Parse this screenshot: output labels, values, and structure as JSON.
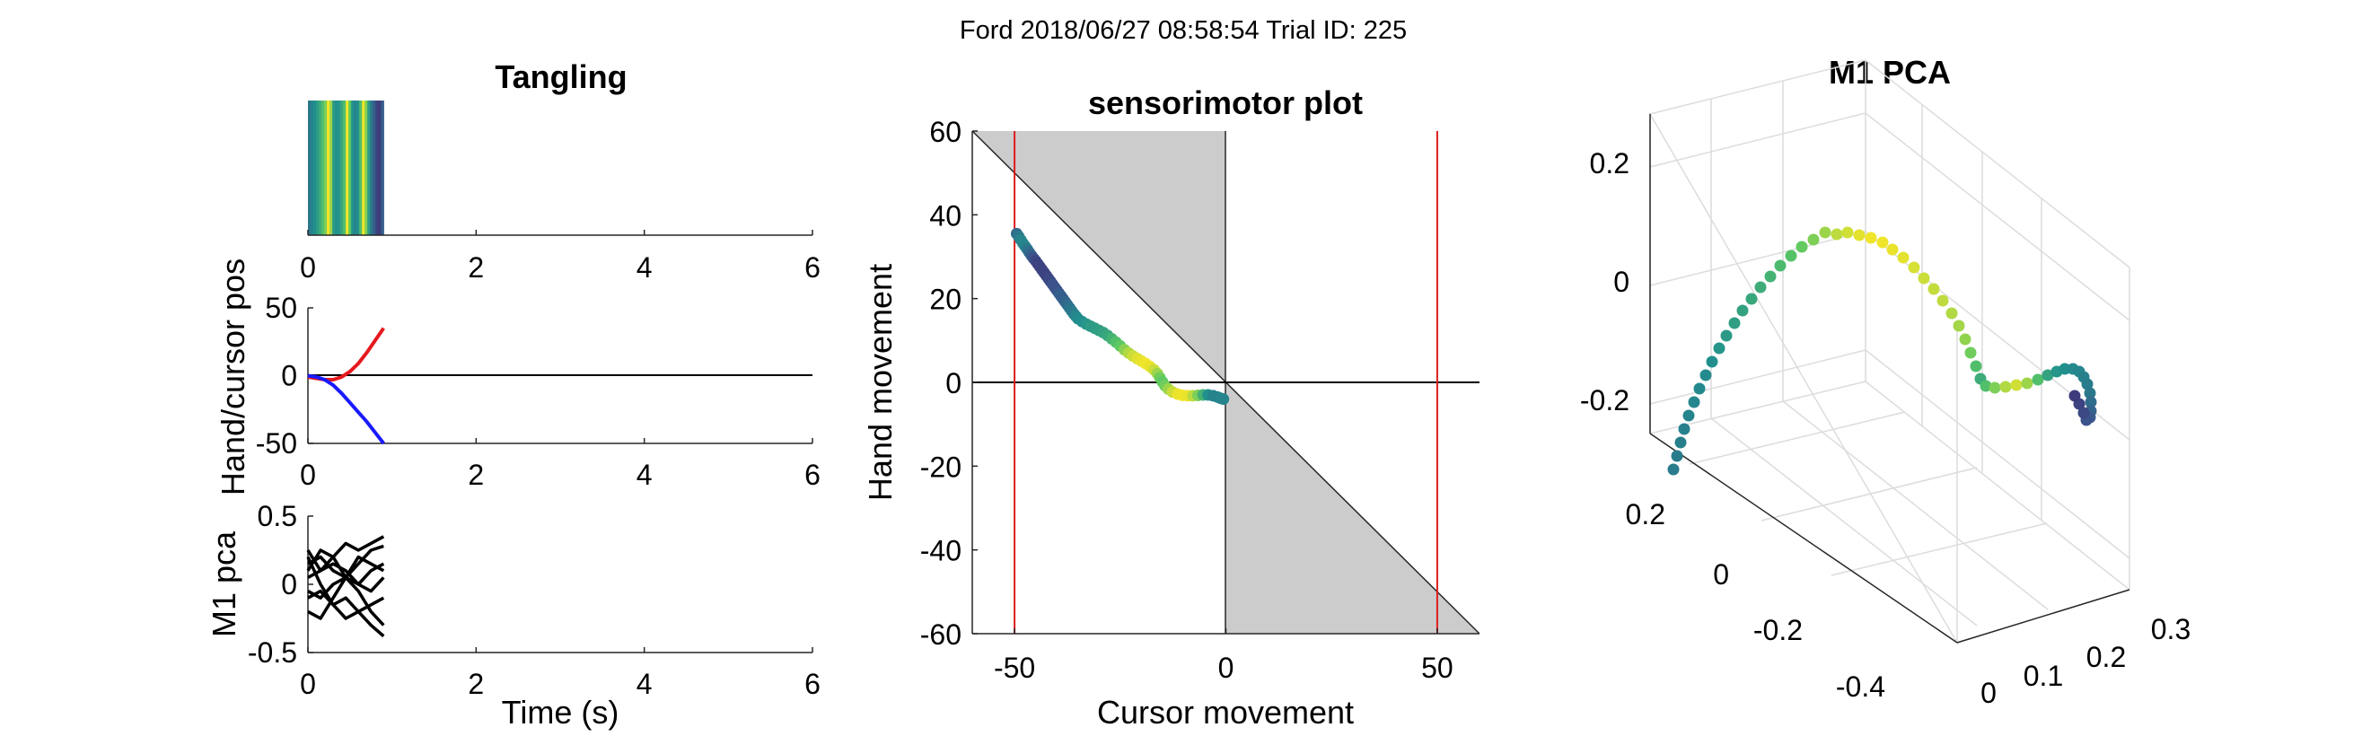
{
  "suptitle": "Ford 2018/06/27 08:58:54 Trial ID: 225",
  "colors": {
    "axis": "#262626",
    "hand_trace": "#e6191e",
    "cursor_trace": "#1a1aff",
    "pca_traces": "#000000",
    "gray_region": "#cccccc",
    "boundary_lines": "#dd1c1c",
    "colormap": [
      "#440154",
      "#3b528b",
      "#21908d",
      "#5dc963",
      "#fde725"
    ]
  },
  "chart_data": [
    {
      "panel": "tangling",
      "type": "heatmap",
      "title": "Tangling",
      "xlim": [
        0,
        6
      ],
      "xticks": [
        "0",
        "2",
        "4",
        "6"
      ],
      "extent_x": [
        0,
        0.9
      ],
      "column_values": [
        0.4,
        0.45,
        0.5,
        0.55,
        0.62,
        0.7,
        0.8,
        0.98,
        0.85,
        0.55,
        0.5,
        0.52,
        0.6,
        0.7,
        0.98,
        0.75,
        0.5,
        0.45,
        0.5,
        0.7,
        0.98,
        0.8,
        0.55,
        0.4,
        0.3,
        0.2,
        0.18,
        0.3
      ]
    },
    {
      "panel": "hand_cursor",
      "type": "line",
      "ylabel": "Hand/cursor pos",
      "xlim": [
        0,
        6
      ],
      "ylim": [
        -50,
        50
      ],
      "xticks": [
        "0",
        "2",
        "4",
        "6"
      ],
      "yticks": [
        "-50",
        "0",
        "50"
      ],
      "series": [
        {
          "x": [
            0,
            0.1,
            0.2,
            0.3,
            0.4,
            0.5,
            0.6,
            0.7,
            0.8,
            0.9
          ],
          "y": [
            -1,
            -2,
            -3,
            -3,
            -1,
            3,
            9,
            17,
            26,
            35
          ]
        },
        {
          "x": [
            0,
            0.1,
            0.2,
            0.3,
            0.4,
            0.5,
            0.6,
            0.7,
            0.8,
            0.9
          ],
          "y": [
            0,
            -1,
            -3,
            -7,
            -13,
            -20,
            -27,
            -34,
            -42,
            -50
          ]
        }
      ]
    },
    {
      "panel": "m1_pca_time",
      "type": "line",
      "ylabel": "M1 pca",
      "xlabel": "Time (s)",
      "xlim": [
        0,
        6
      ],
      "ylim": [
        -0.5,
        0.5
      ],
      "xticks": [
        "0",
        "2",
        "4",
        "6"
      ],
      "yticks": [
        "-0.5",
        "0",
        "0.5"
      ],
      "series": [
        {
          "x": [
            0,
            0.15,
            0.3,
            0.45,
            0.6,
            0.75,
            0.9
          ],
          "y": [
            0.25,
            0.1,
            0.2,
            0.3,
            0.25,
            0.3,
            0.35
          ]
        },
        {
          "x": [
            0,
            0.15,
            0.3,
            0.45,
            0.6,
            0.75,
            0.9
          ],
          "y": [
            0.15,
            0.2,
            0.1,
            0.05,
            0.15,
            0.25,
            0.28
          ]
        },
        {
          "x": [
            0,
            0.15,
            0.3,
            0.45,
            0.6,
            0.75,
            0.9
          ],
          "y": [
            0.05,
            0.1,
            0.15,
            0.1,
            0.0,
            -0.05,
            0.05
          ]
        },
        {
          "x": [
            0,
            0.15,
            0.3,
            0.45,
            0.6,
            0.75,
            0.9
          ],
          "y": [
            -0.05,
            -0.1,
            0.0,
            0.05,
            0.0,
            0.1,
            0.15
          ]
        },
        {
          "x": [
            0,
            0.15,
            0.3,
            0.45,
            0.6,
            0.75,
            0.9
          ],
          "y": [
            -0.1,
            -0.05,
            -0.15,
            -0.1,
            -0.2,
            -0.15,
            -0.1
          ]
        },
        {
          "x": [
            0,
            0.15,
            0.3,
            0.45,
            0.6,
            0.75,
            0.9
          ],
          "y": [
            0.2,
            0.0,
            -0.15,
            -0.25,
            -0.2,
            -0.3,
            -0.38
          ]
        },
        {
          "x": [
            0,
            0.15,
            0.3,
            0.45,
            0.6,
            0.75,
            0.9
          ],
          "y": [
            -0.2,
            -0.25,
            -0.1,
            0.05,
            0.2,
            0.15,
            0.1
          ]
        },
        {
          "x": [
            0,
            0.15,
            0.3,
            0.45,
            0.6,
            0.75,
            0.9
          ],
          "y": [
            0.1,
            0.25,
            0.2,
            0.05,
            -0.05,
            -0.2,
            -0.3
          ]
        }
      ]
    },
    {
      "panel": "sensorimotor",
      "type": "scatter",
      "title": "sensorimotor plot",
      "xlabel": "Cursor movement",
      "ylabel": "Hand movement",
      "xlim": [
        -60,
        60
      ],
      "ylim": [
        -60,
        60
      ],
      "xticks": [
        "-50",
        "0",
        "50"
      ],
      "yticks": [
        "60",
        "40",
        "20",
        "0",
        "-20",
        "-40",
        "-60"
      ],
      "boundaries_x": [
        -50,
        50
      ],
      "points": [
        {
          "x": -49.5,
          "y": 35.5,
          "c": 0.35
        },
        {
          "x": -49,
          "y": 34.8,
          "c": 0.4
        },
        {
          "x": -48.5,
          "y": 34,
          "c": 0.45
        },
        {
          "x": -48,
          "y": 33.2,
          "c": 0.45
        },
        {
          "x": -47.5,
          "y": 32.5,
          "c": 0.45
        },
        {
          "x": -47,
          "y": 31.8,
          "c": 0.4
        },
        {
          "x": -46.5,
          "y": 31,
          "c": 0.35
        },
        {
          "x": -46,
          "y": 30.3,
          "c": 0.3
        },
        {
          "x": -45.5,
          "y": 29.6,
          "c": 0.25
        },
        {
          "x": -45,
          "y": 29,
          "c": 0.22
        },
        {
          "x": -44.5,
          "y": 28.3,
          "c": 0.2
        },
        {
          "x": -44,
          "y": 27.6,
          "c": 0.2
        },
        {
          "x": -43.5,
          "y": 26.9,
          "c": 0.2
        },
        {
          "x": -43,
          "y": 26.2,
          "c": 0.2
        },
        {
          "x": -42.5,
          "y": 25.5,
          "c": 0.2
        },
        {
          "x": -42,
          "y": 24.8,
          "c": 0.22
        },
        {
          "x": -41.5,
          "y": 24.1,
          "c": 0.22
        },
        {
          "x": -41,
          "y": 23.4,
          "c": 0.25
        },
        {
          "x": -40.5,
          "y": 22.7,
          "c": 0.25
        },
        {
          "x": -40,
          "y": 22,
          "c": 0.25
        },
        {
          "x": -39.5,
          "y": 21.3,
          "c": 0.28
        },
        {
          "x": -39,
          "y": 20.6,
          "c": 0.3
        },
        {
          "x": -38.5,
          "y": 19.9,
          "c": 0.3
        },
        {
          "x": -38,
          "y": 19.2,
          "c": 0.32
        },
        {
          "x": -37.5,
          "y": 18.5,
          "c": 0.35
        },
        {
          "x": -37,
          "y": 17.8,
          "c": 0.38
        },
        {
          "x": -36.5,
          "y": 17.1,
          "c": 0.4
        },
        {
          "x": -36,
          "y": 16.4,
          "c": 0.42
        },
        {
          "x": -35.5,
          "y": 15.8,
          "c": 0.45
        },
        {
          "x": -35,
          "y": 15.2,
          "c": 0.48
        },
        {
          "x": -34,
          "y": 14.5,
          "c": 0.5
        },
        {
          "x": -33,
          "y": 13.9,
          "c": 0.52
        },
        {
          "x": -32,
          "y": 13.4,
          "c": 0.55
        },
        {
          "x": -31,
          "y": 12.9,
          "c": 0.55
        },
        {
          "x": -30,
          "y": 12.4,
          "c": 0.56
        },
        {
          "x": -29,
          "y": 11.9,
          "c": 0.58
        },
        {
          "x": -28,
          "y": 11.2,
          "c": 0.6
        },
        {
          "x": -27,
          "y": 10.4,
          "c": 0.65
        },
        {
          "x": -26,
          "y": 9.6,
          "c": 0.7
        },
        {
          "x": -25,
          "y": 8.7,
          "c": 0.75
        },
        {
          "x": -24,
          "y": 7.8,
          "c": 0.82
        },
        {
          "x": -23,
          "y": 7,
          "c": 0.88
        },
        {
          "x": -22,
          "y": 6.3,
          "c": 0.92
        },
        {
          "x": -21,
          "y": 5.7,
          "c": 0.95
        },
        {
          "x": -20,
          "y": 5.1,
          "c": 0.97
        },
        {
          "x": -19,
          "y": 4.5,
          "c": 0.98
        },
        {
          "x": -18,
          "y": 3.8,
          "c": 0.97
        },
        {
          "x": -17,
          "y": 3,
          "c": 0.92
        },
        {
          "x": -16.2,
          "y": 2.1,
          "c": 0.85
        },
        {
          "x": -15.6,
          "y": 1.1,
          "c": 0.78
        },
        {
          "x": -15,
          "y": 0.1,
          "c": 0.75
        },
        {
          "x": -14.4,
          "y": -0.8,
          "c": 0.78
        },
        {
          "x": -13.6,
          "y": -1.6,
          "c": 0.85
        },
        {
          "x": -12.6,
          "y": -2.3,
          "c": 0.92
        },
        {
          "x": -11.4,
          "y": -2.8,
          "c": 0.97
        },
        {
          "x": -10.2,
          "y": -3.1,
          "c": 0.98
        },
        {
          "x": -9,
          "y": -3.2,
          "c": 0.97
        },
        {
          "x": -7.8,
          "y": -3.2,
          "c": 0.9
        },
        {
          "x": -6.6,
          "y": -3.1,
          "c": 0.8
        },
        {
          "x": -5.4,
          "y": -3,
          "c": 0.65
        },
        {
          "x": -4.2,
          "y": -3,
          "c": 0.5
        },
        {
          "x": -3,
          "y": -3.2,
          "c": 0.45
        },
        {
          "x": -2,
          "y": -3.5,
          "c": 0.45
        },
        {
          "x": -1.2,
          "y": -3.8,
          "c": 0.45
        },
        {
          "x": -0.6,
          "y": -4,
          "c": 0.45
        }
      ]
    },
    {
      "panel": "m1_pca_3d",
      "type": "scatter",
      "title": "M1 PCA",
      "zticks": [
        "0.2",
        "0",
        "-0.2"
      ],
      "yticks_left": [
        "0.2",
        "0",
        "-0.2",
        "-0.4"
      ],
      "xticks_right": [
        "0",
        "0.1",
        "0.2",
        "0.3"
      ]
    }
  ]
}
